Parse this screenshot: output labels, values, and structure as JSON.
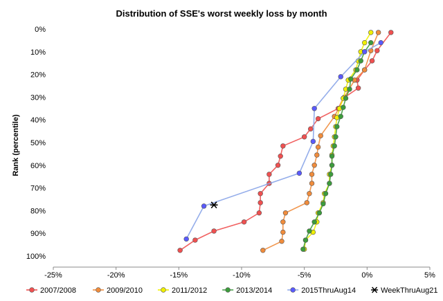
{
  "chart_data": {
    "type": "scatter",
    "title": "Distribution of SSE's worst weekly loss by month",
    "xlabel": "",
    "ylabel": "Rank (percentile)",
    "xlim": [
      -25,
      5
    ],
    "ylim": [
      0,
      100
    ],
    "y_inverted": true,
    "x_ticks": [
      "-25%",
      "-20%",
      "-15%",
      "-10%",
      "-5%",
      "0%",
      "5%"
    ],
    "y_ticks": [
      "0%",
      "10%",
      "20%",
      "30%",
      "40%",
      "50%",
      "60%",
      "70%",
      "80%",
      "90%",
      "100%"
    ],
    "grid": false,
    "legend_position": "bottom",
    "series": [
      {
        "name": "2007/2008",
        "color": "#f05050",
        "lines": true,
        "marker": "circle",
        "points": [
          [
            1.9,
            1.5
          ],
          [
            0.8,
            9.5
          ],
          [
            0.4,
            14
          ],
          [
            -0.2,
            18
          ],
          [
            -0.8,
            22.5
          ],
          [
            -0.7,
            26
          ],
          [
            -1.9,
            30.5
          ],
          [
            -2.3,
            35
          ],
          [
            -3.9,
            39.5
          ],
          [
            -4.5,
            44
          ],
          [
            -5,
            47.5
          ],
          [
            -6.7,
            51.5
          ],
          [
            -6.9,
            56
          ],
          [
            -7.1,
            60
          ],
          [
            -7.8,
            64
          ],
          [
            -7.8,
            68
          ],
          [
            -8.5,
            72.5
          ],
          [
            -8.5,
            76.5
          ],
          [
            -8.6,
            81
          ],
          [
            -9.8,
            85
          ],
          [
            -12.2,
            89
          ],
          [
            -13.7,
            93
          ],
          [
            -14.9,
            97.5
          ]
        ]
      },
      {
        "name": "2009/2010",
        "color": "#f08c3c",
        "lines": true,
        "marker": "circle",
        "points": [
          [
            0.9,
            1.5
          ],
          [
            0.3,
            9.5
          ],
          [
            -0.2,
            18
          ],
          [
            -1,
            22.5
          ],
          [
            -1.8,
            30
          ],
          [
            -2.6,
            38.5
          ],
          [
            -3.7,
            47
          ],
          [
            -3.9,
            52
          ],
          [
            -4,
            55.5
          ],
          [
            -4.2,
            60
          ],
          [
            -4.4,
            64
          ],
          [
            -4.4,
            68
          ],
          [
            -4.6,
            72.5
          ],
          [
            -4.8,
            76.5
          ],
          [
            -6.5,
            81
          ],
          [
            -6.7,
            85
          ],
          [
            -6.7,
            89.5
          ],
          [
            -6.8,
            93.5
          ],
          [
            -8.3,
            97.5
          ]
        ]
      },
      {
        "name": "2011/2012",
        "color": "#f0f000",
        "lines": true,
        "marker": "circle",
        "points": [
          [
            0.3,
            1.5
          ],
          [
            -0.2,
            6
          ],
          [
            -0.5,
            10
          ],
          [
            -0.7,
            14
          ],
          [
            -0.9,
            18
          ],
          [
            -1.5,
            22.5
          ],
          [
            -1.7,
            26.5
          ],
          [
            -1.9,
            30.5
          ],
          [
            -2.2,
            35
          ],
          [
            -2.4,
            39
          ],
          [
            -2.5,
            43
          ],
          [
            -2.6,
            47.5
          ],
          [
            -2.7,
            51.5
          ],
          [
            -2.8,
            55.5
          ],
          [
            -2.8,
            60
          ],
          [
            -3,
            64
          ],
          [
            -3,
            68
          ],
          [
            -3.4,
            72.5
          ],
          [
            -3.5,
            76.5
          ],
          [
            -3.9,
            81
          ],
          [
            -4,
            85
          ],
          [
            -4.3,
            89.5
          ],
          [
            -4.9,
            93
          ],
          [
            -5,
            97
          ]
        ]
      },
      {
        "name": "2013/2014",
        "color": "#3c9c3c",
        "lines": true,
        "marker": "circle",
        "points": [
          [
            0.3,
            6
          ],
          [
            -0.2,
            10
          ],
          [
            -0.5,
            14
          ],
          [
            -0.8,
            18
          ],
          [
            -1.3,
            22
          ],
          [
            -1.4,
            26.5
          ],
          [
            -1.7,
            30.5
          ],
          [
            -1.9,
            34.5
          ],
          [
            -2.1,
            38.5
          ],
          [
            -2.4,
            43
          ],
          [
            -2.5,
            47.5
          ],
          [
            -2.6,
            51.5
          ],
          [
            -2.8,
            56
          ],
          [
            -2.8,
            60
          ],
          [
            -2.9,
            64
          ],
          [
            -3,
            68
          ],
          [
            -3.3,
            72.5
          ],
          [
            -3.5,
            77
          ],
          [
            -3.8,
            81
          ],
          [
            -4.2,
            85
          ],
          [
            -4.6,
            89
          ],
          [
            -4.9,
            93
          ],
          [
            -5.1,
            97
          ]
        ]
      },
      {
        "name": "2015ThruAug14",
        "color": "#5a5aff",
        "line_color": "#88a4e8",
        "lines": true,
        "marker": "circle",
        "points": [
          [
            1.1,
            6
          ],
          [
            -0.2,
            10
          ],
          [
            -2.1,
            21
          ],
          [
            -4.2,
            35
          ],
          [
            -4.3,
            49.5
          ],
          [
            -5.4,
            63.5
          ],
          [
            -13,
            78
          ],
          [
            -14.4,
            92.5
          ]
        ]
      },
      {
        "name": "WeekThruAug21",
        "color": "#000000",
        "lines": false,
        "marker": "asterisk",
        "points": [
          [
            -12.2,
            77.5
          ]
        ]
      }
    ]
  }
}
